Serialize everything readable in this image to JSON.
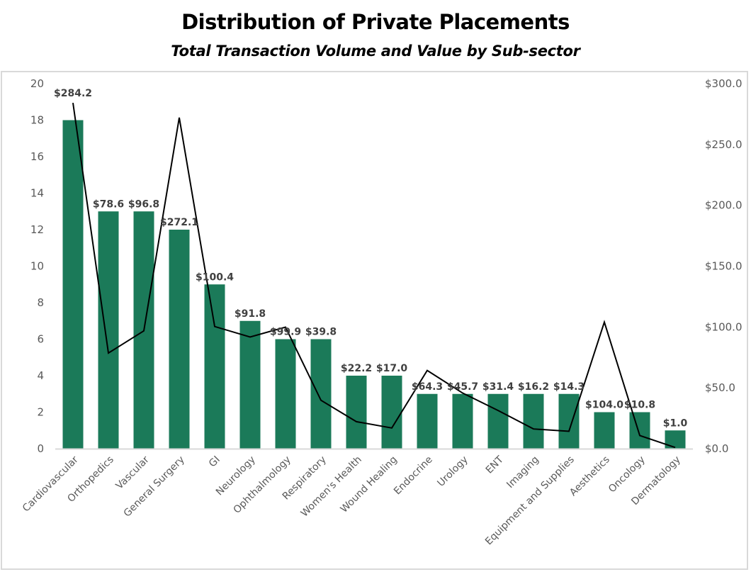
{
  "chart_data": {
    "type": "bar",
    "title": "Distribution of Private Placements",
    "subtitle": "Total Transaction Volume and Value by Sub-sector",
    "categories": [
      "Cardiovascular",
      "Orthopedics",
      "Vascular",
      "General Surgery",
      "GI",
      "Neurology",
      "Ophthalmology",
      "Respiratory",
      "Women's Health",
      "Wound Healing",
      "Endocrine",
      "Urology",
      "ENT",
      "Imaging",
      "Equipment and Supplies",
      "Aesthetics",
      "Oncology",
      "Dermatology"
    ],
    "series": [
      {
        "name": "Transaction Volume",
        "type": "bar",
        "axis": "left",
        "color": "#1b7a59",
        "values": [
          18,
          13,
          13,
          12,
          9,
          7,
          6,
          6,
          4,
          4,
          3,
          3,
          3,
          3,
          3,
          2,
          2,
          1
        ]
      },
      {
        "name": "Transaction Value",
        "type": "line",
        "axis": "right",
        "color": "#000000",
        "values": [
          284.2,
          78.6,
          96.8,
          272.1,
          100.4,
          91.8,
          99.9,
          39.8,
          22.2,
          17.0,
          64.3,
          45.7,
          31.4,
          16.2,
          14.3,
          104.0,
          10.8,
          1.0
        ],
        "labels": [
          "$284.2",
          "$78.6",
          "$96.8",
          "$272.1",
          "$100.4",
          "$91.8",
          "$99.9",
          "$39.8",
          "$22.2",
          "$17.0",
          "$64.3",
          "$45.7",
          "$31.4",
          "$16.2",
          "$14.3",
          "$104.0",
          "$10.8",
          "$1.0"
        ]
      }
    ],
    "y_left": {
      "range": [
        0,
        20
      ],
      "ticks": [
        "0",
        "2",
        "4",
        "6",
        "8",
        "10",
        "12",
        "14",
        "16",
        "18",
        "20"
      ]
    },
    "y_right": {
      "range": [
        0,
        300
      ],
      "ticks": [
        "$0.0",
        "$50.0",
        "$100.0",
        "$150.0",
        "$200.0",
        "$250.0",
        "$300.0"
      ]
    },
    "xlabel": "",
    "ylabel": "",
    "grid": false,
    "legend": "none"
  }
}
